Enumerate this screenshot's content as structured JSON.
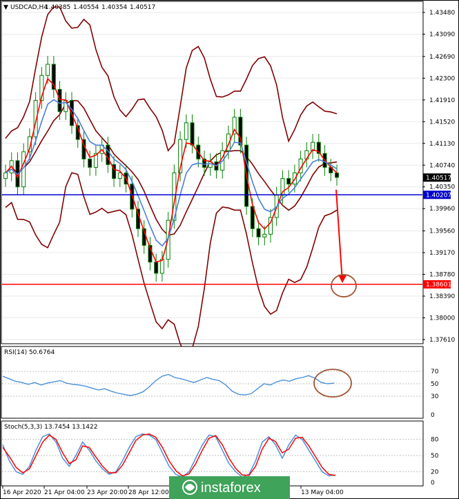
{
  "header": {
    "arrow_icon": "triangle-down-icon",
    "symbol": "USDCAD,H4",
    "open": "1.40385",
    "high": "1.40554",
    "low": "1.40354",
    "close": "1.40517"
  },
  "colors": {
    "candle": "#008000",
    "bollinger": "#800000",
    "ma_fast": "#ff0000",
    "ma_slow": "#4a7fd8",
    "level_blue": "#0000cc",
    "level_red": "#ff0000",
    "forecast_arrow": "#ff0000",
    "target_circle": "#a0522d",
    "rsi_line": "#4a90d9",
    "stoch_main": "#4a90d9",
    "stoch_signal": "#ff0000"
  },
  "chart_data": [
    {
      "type": "candlestick",
      "symbol": "USDCAD",
      "timeframe": "H4",
      "ylim": [
        1.3761,
        1.4348
      ],
      "y_ticks": [
        "1.43480",
        "1.43090",
        "1.42690",
        "1.42300",
        "1.41910",
        "1.41520",
        "1.41130",
        "1.40740",
        "1.40350",
        "1.39960",
        "1.39560",
        "1.39170",
        "1.38780",
        "1.38390",
        "1.38000",
        "1.37610"
      ],
      "current_price": {
        "label": "1.40517",
        "value": 1.40517
      },
      "levels": [
        {
          "label": "1.40207",
          "value": 1.40207,
          "color": "#0000cc"
        },
        {
          "label": "1.38601",
          "value": 1.38601,
          "color": "#ff0000"
        }
      ],
      "x_ticks": [
        "16 Apr 2020",
        "21 Apr 04:00",
        "23 Apr 20:00",
        "28 Apr 12:00",
        "13 May 04:00"
      ],
      "close_series": [
        1.406,
        1.4082,
        1.4035,
        1.4098,
        1.4125,
        1.419,
        1.4235,
        1.4255,
        1.421,
        1.417,
        1.419,
        1.4145,
        1.412,
        1.4085,
        1.407,
        1.4095,
        1.411,
        1.4075,
        1.405,
        1.406,
        1.404,
        1.3995,
        1.396,
        1.393,
        1.39,
        1.388,
        1.3905,
        1.3975,
        1.406,
        1.412,
        1.415,
        1.411,
        1.4085,
        1.407,
        1.408,
        1.4065,
        1.41,
        1.413,
        1.416,
        1.411,
        1.4,
        1.396,
        1.3945,
        1.395,
        1.398,
        1.402,
        1.405,
        1.404,
        1.406,
        1.4085,
        1.41,
        1.4115,
        1.4095,
        1.407,
        1.406,
        1.4052
      ],
      "forecast": {
        "from": 1.403,
        "to": 1.386
      }
    },
    {
      "type": "line",
      "title": "RSI(14) 50.6764",
      "ylim": [
        0,
        100
      ],
      "y_ticks": [
        "70",
        "50",
        "30",
        "0"
      ],
      "series": [
        {
          "values": [
            62,
            58,
            54,
            52,
            49,
            52,
            48,
            51,
            53,
            55,
            51,
            49,
            48,
            46,
            43,
            40,
            42,
            38,
            35,
            33,
            31,
            33,
            37,
            45,
            55,
            62,
            65,
            60,
            58,
            55,
            52,
            56,
            60,
            57,
            55,
            48,
            38,
            33,
            32,
            34,
            42,
            50,
            48,
            53,
            56,
            54,
            58,
            60,
            63,
            59,
            52,
            50,
            51
          ]
        }
      ]
    },
    {
      "type": "line",
      "title": "Stoch(5,3,3) 13.7454 13.1422",
      "ylim": [
        0,
        100
      ],
      "y_ticks": [
        "80",
        "50",
        "20",
        "0"
      ],
      "series": [
        {
          "values": [
            70,
            40,
            20,
            15,
            30,
            60,
            85,
            90,
            75,
            45,
            30,
            50,
            75,
            60,
            40,
            25,
            15,
            20,
            40,
            65,
            85,
            90,
            88,
            80,
            55,
            30,
            15,
            10,
            20,
            45,
            70,
            88,
            85,
            60,
            35,
            20,
            10,
            15,
            40,
            75,
            85,
            70,
            45,
            70,
            88,
            80,
            60,
            40,
            20,
            12,
            14
          ]
        },
        {
          "values": [
            65,
            48,
            28,
            18,
            25,
            50,
            75,
            88,
            80,
            55,
            35,
            42,
            68,
            65,
            47,
            30,
            18,
            18,
            32,
            55,
            78,
            88,
            90,
            84,
            65,
            40,
            22,
            12,
            16,
            35,
            60,
            82,
            87,
            70,
            45,
            26,
            14,
            13,
            30,
            62,
            82,
            76,
            55,
            62,
            82,
            84,
            68,
            48,
            28,
            15,
            13
          ]
        }
      ]
    }
  ],
  "watermark": {
    "text": "instaforex",
    "icon": "instaforex-logo-icon"
  }
}
